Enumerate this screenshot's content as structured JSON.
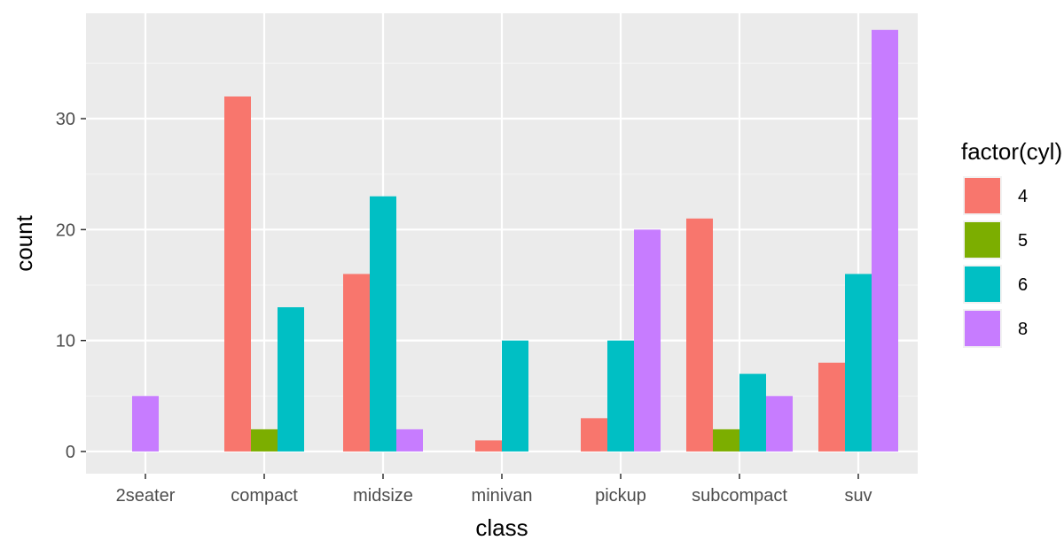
{
  "chart_data": {
    "type": "bar",
    "title": "",
    "xlabel": "class",
    "ylabel": "count",
    "categories": [
      "2seater",
      "compact",
      "midsize",
      "minivan",
      "pickup",
      "subcompact",
      "suv"
    ],
    "y_ticks": [
      0,
      10,
      20,
      30
    ],
    "y_tick_labels": [
      "0",
      "10",
      "20",
      "30"
    ],
    "ylim": [
      -2,
      39.5
    ],
    "grid": true,
    "legend": {
      "title": "factor(cyl)",
      "position": "right"
    },
    "series": [
      {
        "name": "4",
        "color": "#F8766D",
        "values": [
          null,
          32,
          16,
          1,
          3,
          21,
          8
        ]
      },
      {
        "name": "5",
        "color": "#7CAE00",
        "values": [
          null,
          2,
          null,
          null,
          null,
          2,
          null
        ]
      },
      {
        "name": "6",
        "color": "#00BFC4",
        "values": [
          null,
          13,
          23,
          10,
          10,
          7,
          16
        ]
      },
      {
        "name": "8",
        "color": "#C77CFF",
        "values": [
          5,
          null,
          2,
          null,
          20,
          5,
          38
        ]
      }
    ],
    "colors": {
      "panel_background": "#EBEBEB",
      "grid_major": "#FFFFFF",
      "grid_minor": "#F4F4F4"
    }
  }
}
